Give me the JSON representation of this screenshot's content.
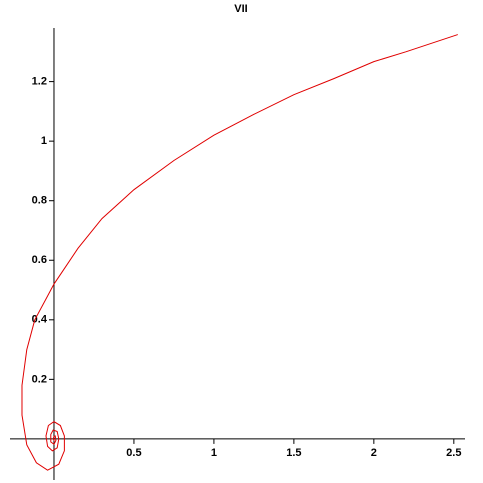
{
  "chart_data": {
    "type": "line",
    "title": "VII",
    "x": [
      2.525,
      2.2,
      2.0,
      1.75,
      1.5,
      1.25,
      1.0,
      0.75,
      0.5,
      0.3,
      0.15,
      0.05,
      0,
      -0.05,
      -0.12,
      -0.17,
      -0.2,
      -0.2,
      -0.17,
      -0.11,
      -0.04,
      0.03,
      0.065,
      0.065,
      0.04,
      0,
      -0.035,
      -0.05,
      -0.04,
      -0.01,
      0.02,
      0.03,
      0.02,
      -0.005,
      -0.02,
      -0.02,
      0,
      0.012,
      0.008,
      0,
      -0.005,
      0,
      0
    ],
    "series": [
      {
        "color": "#e00000",
        "values": [
          1.358,
          1.3,
          1.267,
          1.21,
          1.156,
          1.09,
          1.02,
          0.935,
          0.837,
          0.74,
          0.64,
          0.56,
          0.52,
          0.47,
          0.4,
          0.3,
          0.18,
          0.08,
          -0.02,
          -0.08,
          -0.105,
          -0.085,
          -0.04,
          0.01,
          0.045,
          0.058,
          0.045,
          0.01,
          -0.025,
          -0.04,
          -0.03,
          0,
          0.025,
          0.03,
          0.015,
          -0.01,
          -0.018,
          -0.005,
          0.01,
          0.008,
          0,
          -0.004,
          0
        ]
      }
    ],
    "xlim": [
      -0.275,
      2.57
    ],
    "ylim": [
      -0.138,
      1.38
    ],
    "xticks": [
      0.5,
      1,
      1.5,
      2,
      2.5
    ],
    "yticks": [
      0.2,
      0.4,
      0.6,
      0.8,
      1,
      1.2
    ]
  }
}
